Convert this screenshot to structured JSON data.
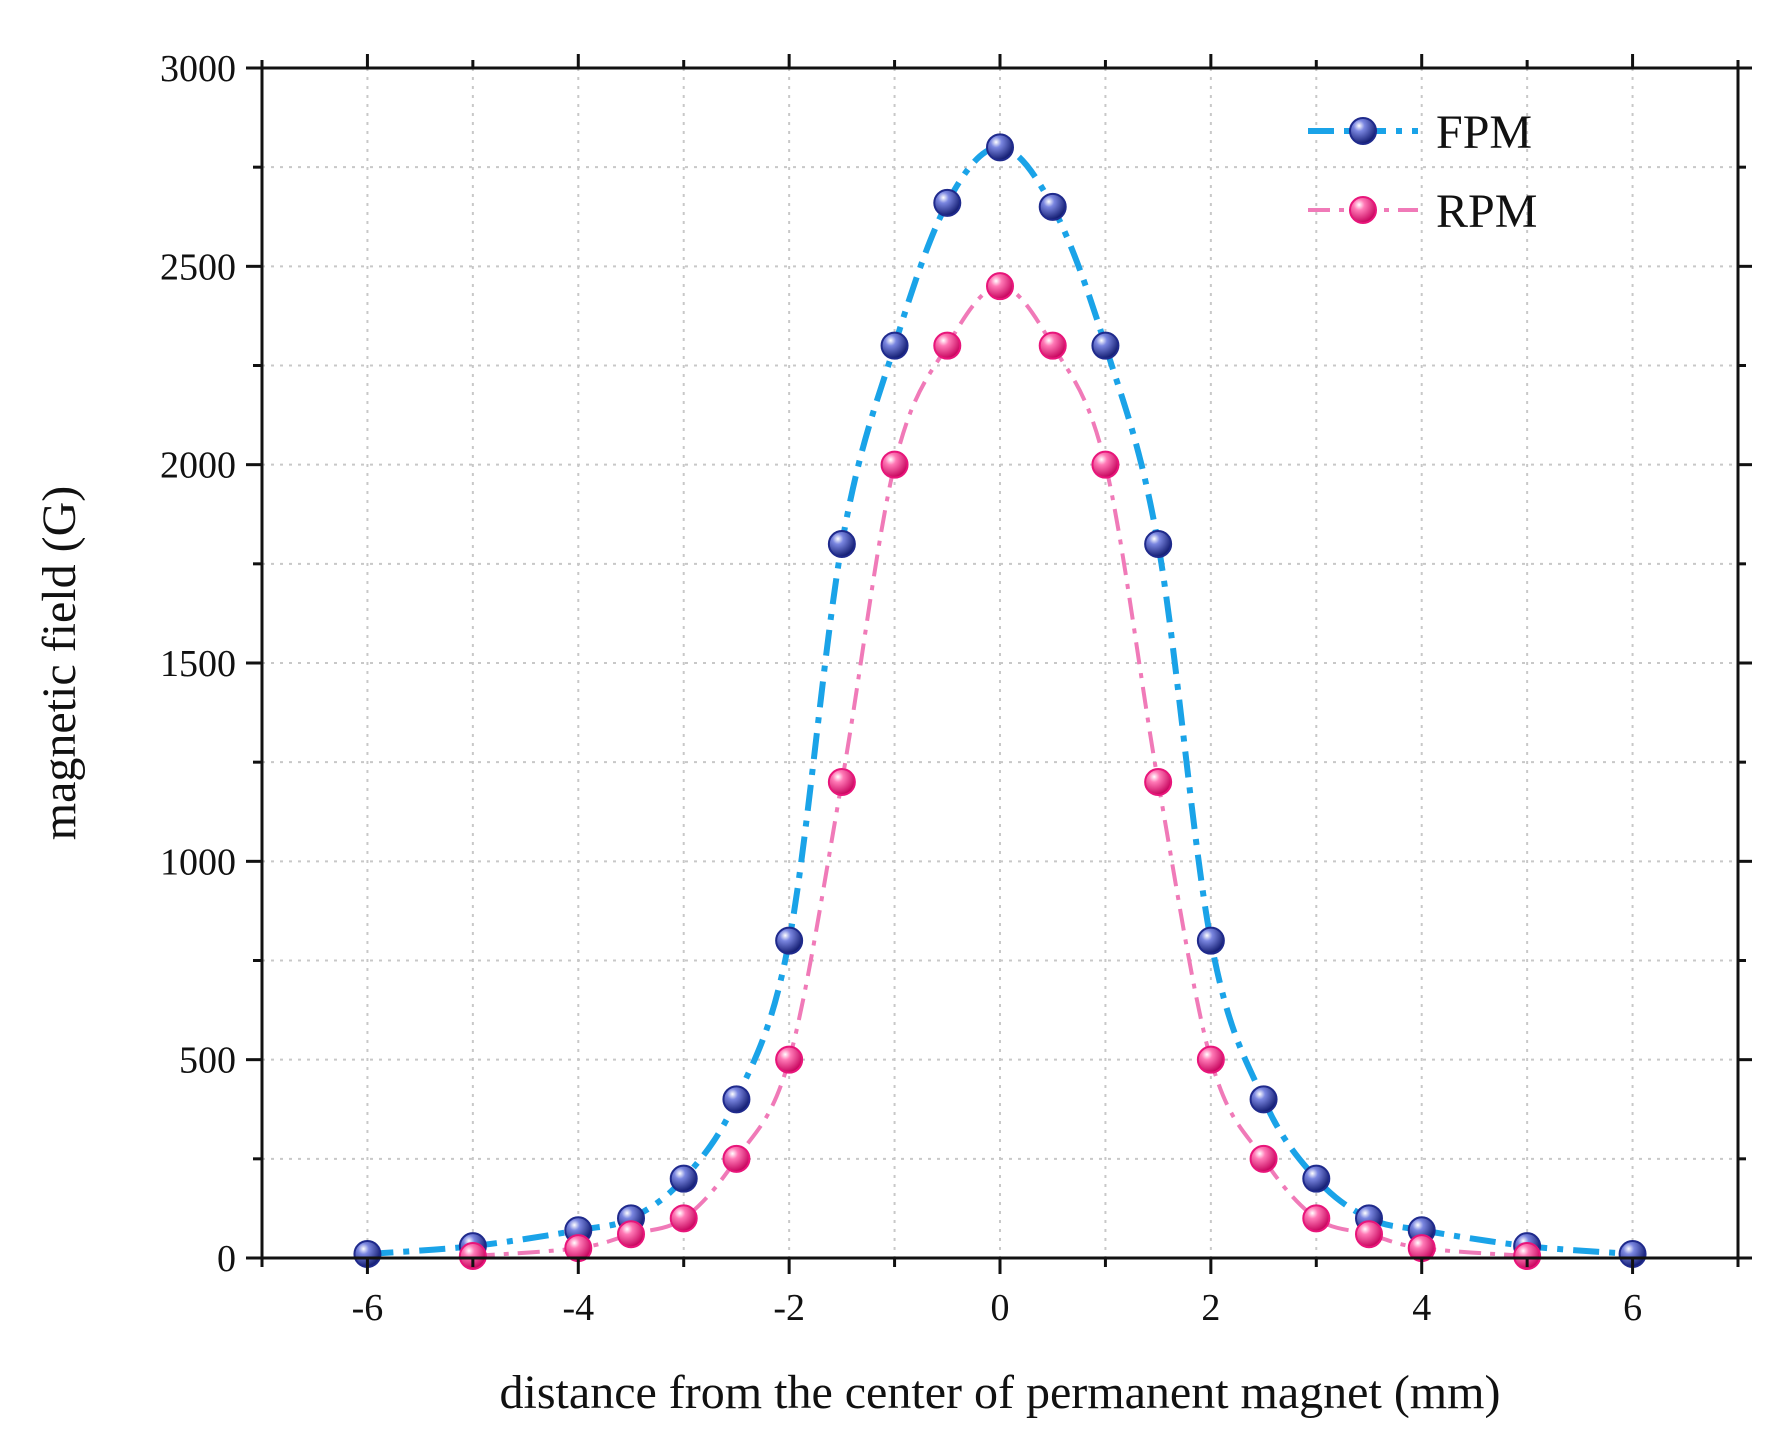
{
  "chart_data": {
    "type": "scatter",
    "title": "",
    "xlabel": "distance from the center of permanent magnet (mm)",
    "ylabel": "magnetic field (G)",
    "xlim": [
      -7,
      7
    ],
    "ylim": [
      0,
      3000
    ],
    "xticks": [
      -6,
      -4,
      -2,
      0,
      2,
      4,
      6
    ],
    "xtick_labels": [
      "-6",
      "-4",
      "-2",
      "0",
      "2",
      "4",
      "6"
    ],
    "yticks": [
      0,
      500,
      1000,
      1500,
      2000,
      2500,
      3000
    ],
    "ytick_labels": [
      "0",
      "500",
      "1000",
      "1500",
      "2000",
      "2500",
      "3000"
    ],
    "grid": true,
    "legend_position": "top-right",
    "series": [
      {
        "name": "FPM",
        "line_color": "#1aa3e8",
        "marker_color": "#1f2a8c",
        "x": [
          -6,
          -5,
          -4,
          -3.5,
          -3,
          -2.5,
          -2,
          -1.5,
          -1,
          -0.5,
          0,
          0.5,
          1,
          1.5,
          2,
          2.5,
          3,
          3.5,
          4,
          5,
          6
        ],
        "y": [
          10,
          30,
          70,
          100,
          200,
          400,
          800,
          1800,
          2300,
          2660,
          2800,
          2650,
          2300,
          1800,
          800,
          400,
          200,
          100,
          70,
          30,
          10
        ]
      },
      {
        "name": "RPM",
        "line_color": "#f07ab8",
        "marker_color": "#e8157a",
        "x": [
          -5,
          -4,
          -3.5,
          -3,
          -2.5,
          -2,
          -1.5,
          -1,
          -0.5,
          0,
          0.5,
          1,
          1.5,
          2,
          2.5,
          3,
          3.5,
          4,
          5
        ],
        "y": [
          5,
          25,
          60,
          100,
          250,
          500,
          1200,
          2000,
          2300,
          2450,
          2300,
          2000,
          1200,
          500,
          250,
          100,
          60,
          25,
          5
        ]
      }
    ]
  }
}
